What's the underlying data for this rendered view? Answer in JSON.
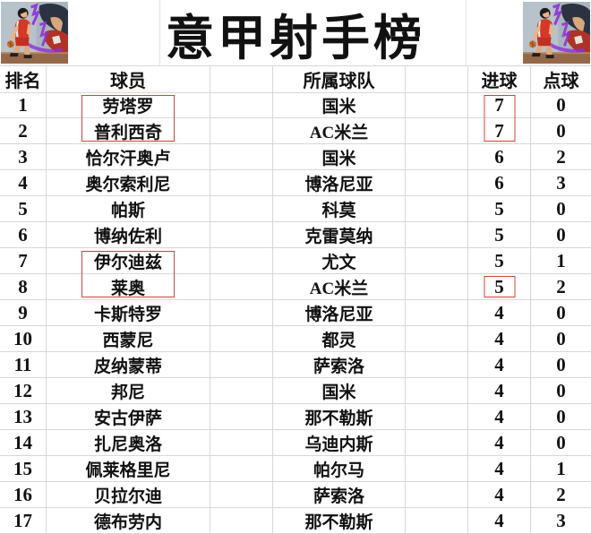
{
  "title": "意甲射手榜",
  "decor": {
    "corner_art_left": "slam-dunk-basketball-player-art",
    "corner_art_right": "slam-dunk-basketball-player-art"
  },
  "table": {
    "headers": {
      "rank": "排名",
      "player": "球员",
      "team": "所属球队",
      "goals": "进球",
      "penalties": "点球"
    },
    "rows": [
      {
        "rank": "1",
        "player": "劳塔罗",
        "team": "国米",
        "goals": "7",
        "penalties": "0",
        "player_box": "start",
        "goals_box": "start"
      },
      {
        "rank": "2",
        "player": "普利西奇",
        "team": "AC米兰",
        "goals": "7",
        "penalties": "0",
        "player_box": "end",
        "goals_box": "end"
      },
      {
        "rank": "3",
        "player": "恰尔汗奥卢",
        "team": "国米",
        "goals": "6",
        "penalties": "2"
      },
      {
        "rank": "4",
        "player": "奥尔索利尼",
        "team": "博洛尼亚",
        "goals": "6",
        "penalties": "3"
      },
      {
        "rank": "5",
        "player": "帕斯",
        "team": "科莫",
        "goals": "5",
        "penalties": "0"
      },
      {
        "rank": "6",
        "player": "博纳佐利",
        "team": "克雷莫纳",
        "goals": "5",
        "penalties": "0"
      },
      {
        "rank": "7",
        "player": "伊尔迪兹",
        "team": "尤文",
        "goals": "5",
        "penalties": "1",
        "player_box": "start"
      },
      {
        "rank": "8",
        "player": "莱奥",
        "team": "AC米兰",
        "goals": "5",
        "penalties": "2",
        "player_box": "end",
        "goals_box": "single"
      },
      {
        "rank": "9",
        "player": "卡斯特罗",
        "team": "博洛尼亚",
        "goals": "4",
        "penalties": "0"
      },
      {
        "rank": "10",
        "player": "西蒙尼",
        "team": "都灵",
        "goals": "4",
        "penalties": "0"
      },
      {
        "rank": "11",
        "player": "皮纳蒙蒂",
        "team": "萨索洛",
        "goals": "4",
        "penalties": "0"
      },
      {
        "rank": "12",
        "player": "邦尼",
        "team": "国米",
        "goals": "4",
        "penalties": "0"
      },
      {
        "rank": "13",
        "player": "安古伊萨",
        "team": "那不勒斯",
        "goals": "4",
        "penalties": "0"
      },
      {
        "rank": "14",
        "player": "扎尼奥洛",
        "team": "乌迪内斯",
        "goals": "4",
        "penalties": "0"
      },
      {
        "rank": "15",
        "player": "佩莱格里尼",
        "team": "帕尔马",
        "goals": "4",
        "penalties": "1"
      },
      {
        "rank": "16",
        "player": "贝拉尔迪",
        "team": "萨索洛",
        "goals": "4",
        "penalties": "2"
      },
      {
        "rank": "17",
        "player": "德布劳内",
        "team": "那不勒斯",
        "goals": "4",
        "penalties": "3"
      }
    ]
  },
  "colors": {
    "highlight_box": "#cc4437",
    "gridline": "#d7d7d7",
    "text": "#111111"
  }
}
